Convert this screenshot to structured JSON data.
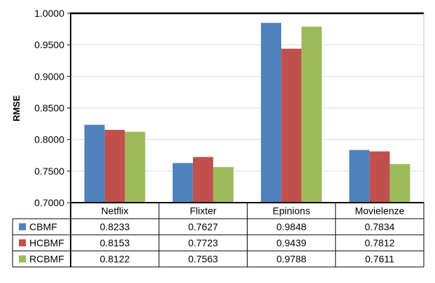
{
  "chart_data": {
    "type": "bar",
    "ylabel": "RMSE",
    "xlabel": "",
    "ylim": [
      0.7,
      1.0
    ],
    "yticks": [
      "0.7000",
      "0.7500",
      "0.8000",
      "0.8500",
      "0.9000",
      "0.9500",
      "1.0000"
    ],
    "ytick_values": [
      0.7,
      0.75,
      0.8,
      0.85,
      0.9,
      0.95,
      1.0
    ],
    "grid": true,
    "legend": "data-table",
    "categories": [
      "Netflix",
      "Flixter",
      "Epinions",
      "Movielenze"
    ],
    "series": [
      {
        "name": "CBMF",
        "color": "#4F81BD",
        "values": [
          0.8233,
          0.7627,
          0.9848,
          0.7834
        ],
        "labels": [
          "0.8233",
          "0.7627",
          "0.9848",
          "0.7834"
        ]
      },
      {
        "name": "HCBMF",
        "color": "#C0504D",
        "values": [
          0.8153,
          0.7723,
          0.9439,
          0.7812
        ],
        "labels": [
          "0.8153",
          "0.7723",
          "0.9439",
          "0.7812"
        ]
      },
      {
        "name": "RCBMF",
        "color": "#9BBB59",
        "values": [
          0.8122,
          0.7563,
          0.9788,
          0.7611
        ],
        "labels": [
          "0.8122",
          "0.7563",
          "0.9788",
          "0.7611"
        ]
      }
    ]
  }
}
